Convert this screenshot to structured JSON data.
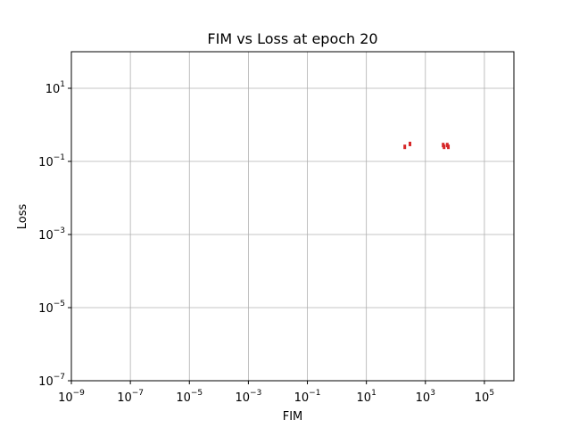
{
  "chart_data": {
    "type": "scatter",
    "title": "FIM vs Loss at epoch 20",
    "xlabel": "FIM",
    "ylabel": "Loss",
    "xscale": "log",
    "yscale": "log",
    "xlim": [
      1e-09,
      1000000.0
    ],
    "ylim": [
      1e-07,
      100
    ],
    "grid": true,
    "marker_color": "#d62728",
    "x_ticks": [
      {
        "base": "10",
        "exp": "−9",
        "value": 1e-09
      },
      {
        "base": "10",
        "exp": "−7",
        "value": 1e-07
      },
      {
        "base": "10",
        "exp": "−5",
        "value": 1e-05
      },
      {
        "base": "10",
        "exp": "−3",
        "value": 0.001
      },
      {
        "base": "10",
        "exp": "−1",
        "value": 0.1
      },
      {
        "base": "10",
        "exp": "1",
        "value": 10
      },
      {
        "base": "10",
        "exp": "3",
        "value": 1000
      },
      {
        "base": "10",
        "exp": "5",
        "value": 100000
      }
    ],
    "y_ticks": [
      {
        "base": "10",
        "exp": "−7",
        "value": 1e-07
      },
      {
        "base": "10",
        "exp": "−5",
        "value": 1e-05
      },
      {
        "base": "10",
        "exp": "−3",
        "value": 0.001
      },
      {
        "base": "10",
        "exp": "−1",
        "value": 0.1
      },
      {
        "base": "10",
        "exp": "1",
        "value": 10
      }
    ],
    "points": [
      {
        "x": 200,
        "y": 0.25
      },
      {
        "x": 300,
        "y": 0.3
      },
      {
        "x": 4000,
        "y": 0.28
      },
      {
        "x": 4300,
        "y": 0.25
      },
      {
        "x": 5500,
        "y": 0.28
      },
      {
        "x": 6000,
        "y": 0.25
      }
    ]
  }
}
